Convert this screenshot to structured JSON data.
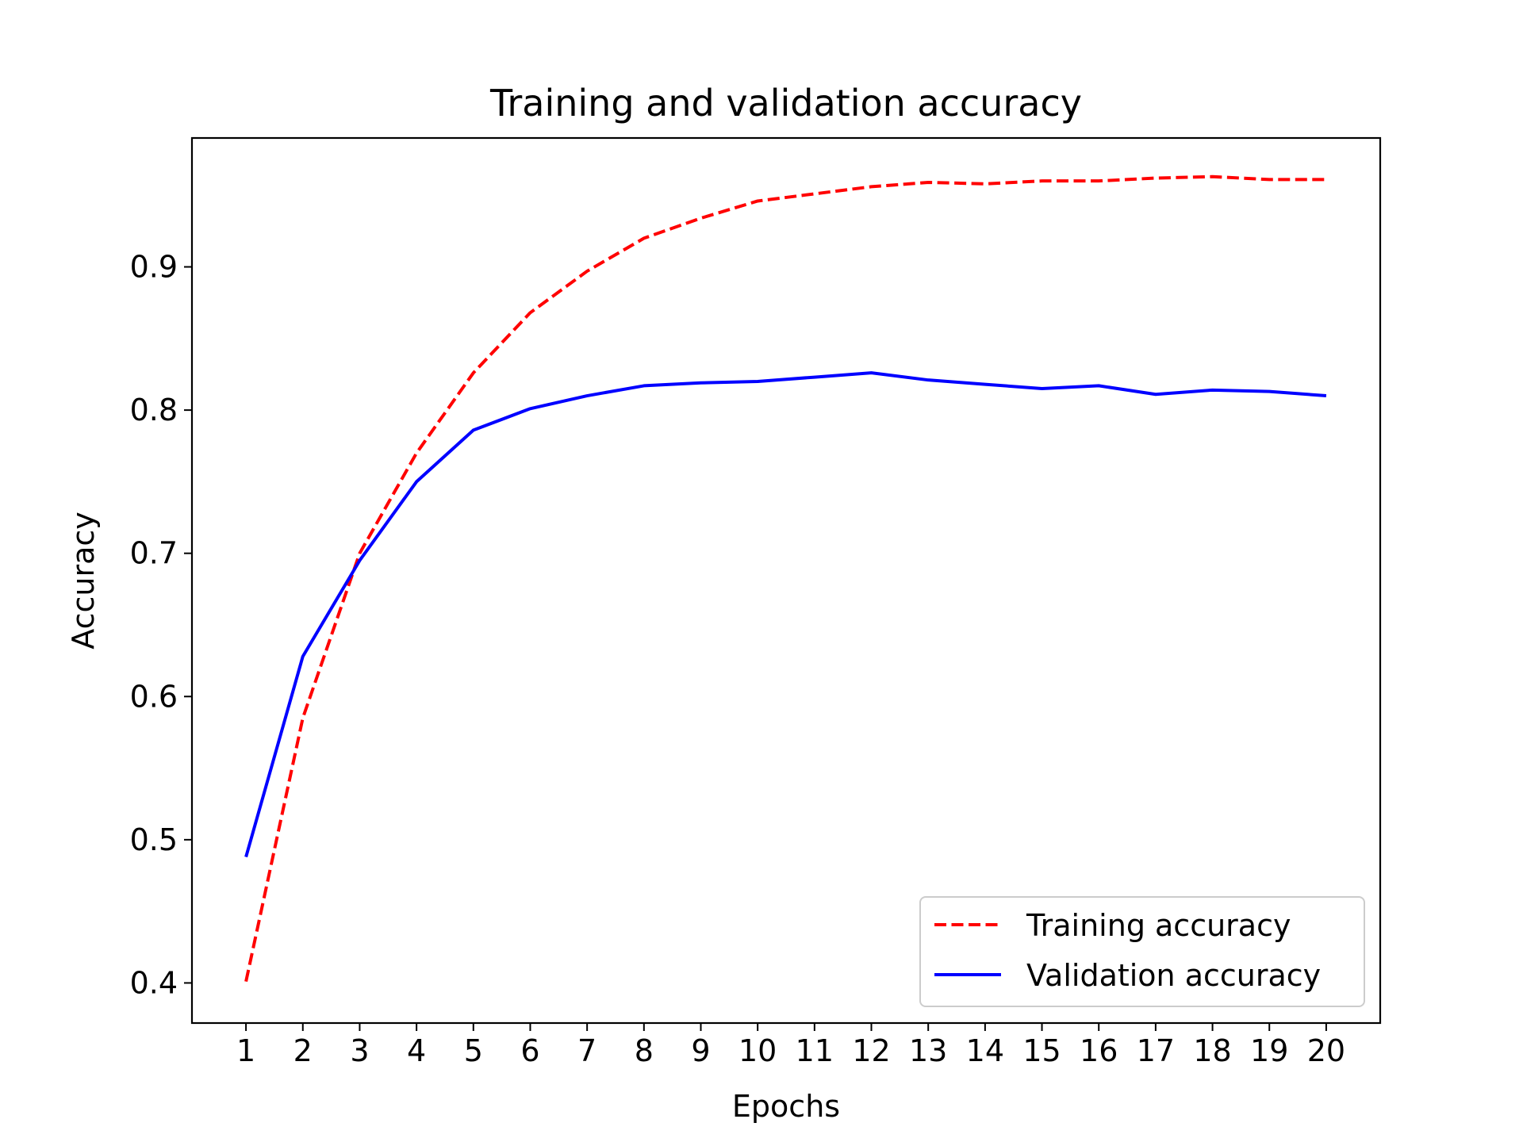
{
  "chart_data": {
    "type": "line",
    "title": "Training and validation accuracy",
    "xlabel": "Epochs",
    "ylabel": "Accuracy",
    "x": [
      1,
      2,
      3,
      4,
      5,
      6,
      7,
      8,
      9,
      10,
      11,
      12,
      13,
      14,
      15,
      16,
      17,
      18,
      19,
      20
    ],
    "xlim": [
      0.05,
      20.95
    ],
    "ylim": [
      0.372,
      0.99
    ],
    "xticks": [
      1,
      2,
      3,
      4,
      5,
      6,
      7,
      8,
      9,
      10,
      11,
      12,
      13,
      14,
      15,
      16,
      17,
      18,
      19,
      20
    ],
    "xtick_labels": [
      "1",
      "2",
      "3",
      "4",
      "5",
      "6",
      "7",
      "8",
      "9",
      "10",
      "11",
      "12",
      "13",
      "14",
      "15",
      "16",
      "17",
      "18",
      "19",
      "20"
    ],
    "yticks": [
      0.4,
      0.5,
      0.6,
      0.7,
      0.8,
      0.9
    ],
    "ytick_labels": [
      "0.4",
      "0.5",
      "0.6",
      "0.7",
      "0.8",
      "0.9"
    ],
    "grid": false,
    "legend_position": "lower-right",
    "series": [
      {
        "name": "Training accuracy",
        "color": "#ff0000",
        "style": "dashed",
        "values": [
          0.401,
          0.585,
          0.7,
          0.77,
          0.826,
          0.868,
          0.897,
          0.92,
          0.934,
          0.946,
          0.951,
          0.956,
          0.959,
          0.958,
          0.96,
          0.96,
          0.962,
          0.963,
          0.961,
          0.961
        ]
      },
      {
        "name": "Validation accuracy",
        "color": "#0000ff",
        "style": "solid",
        "values": [
          0.488,
          0.628,
          0.695,
          0.75,
          0.786,
          0.801,
          0.81,
          0.817,
          0.819,
          0.82,
          0.823,
          0.826,
          0.821,
          0.818,
          0.815,
          0.817,
          0.811,
          0.814,
          0.813,
          0.81
        ]
      }
    ]
  }
}
